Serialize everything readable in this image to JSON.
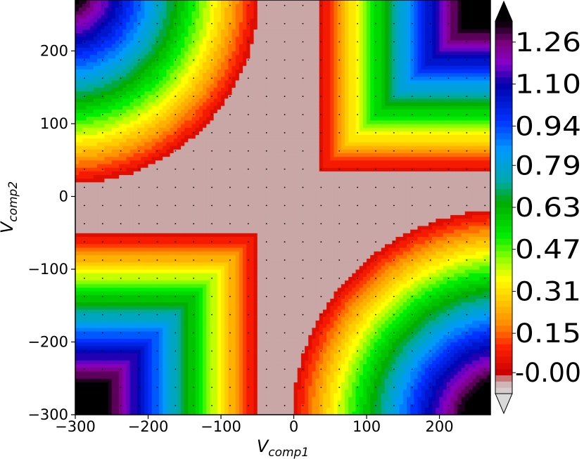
{
  "chart_data": {
    "type": "heatmap",
    "title": "",
    "xlabel": {
      "main": "V",
      "sub": "comp1"
    },
    "ylabel": {
      "main": "V",
      "sub": "comp2"
    },
    "xlim": [
      -300,
      270
    ],
    "ylim": [
      -300,
      270
    ],
    "x_ticks": [
      {
        "value": -300,
        "label": "−300"
      },
      {
        "value": -200,
        "label": "−200"
      },
      {
        "value": -100,
        "label": "−100"
      },
      {
        "value": 0,
        "label": "0"
      },
      {
        "value": 100,
        "label": "100"
      },
      {
        "value": 200,
        "label": "200"
      }
    ],
    "y_ticks": [
      {
        "value": -300,
        "label": "−300"
      },
      {
        "value": -200,
        "label": "−200"
      },
      {
        "value": -100,
        "label": "−100"
      },
      {
        "value": 0,
        "label": "0"
      },
      {
        "value": 100,
        "label": "100"
      },
      {
        "value": 200,
        "label": "200"
      }
    ],
    "colorbar": {
      "range": [
        -0.08,
        1.34
      ],
      "ticks": [
        {
          "value": 1.26,
          "label": "1.26"
        },
        {
          "value": 1.1,
          "label": "1.10"
        },
        {
          "value": 0.94,
          "label": "0.94"
        },
        {
          "value": 0.79,
          "label": "0.79"
        },
        {
          "value": 0.63,
          "label": "0.63"
        },
        {
          "value": 0.47,
          "label": "0.47"
        },
        {
          "value": 0.31,
          "label": "0.31"
        },
        {
          "value": 0.15,
          "label": "0.15"
        },
        {
          "value": 0.0,
          "label": "-0.00"
        }
      ],
      "extend": "both",
      "colormap_stops": [
        {
          "value": -0.08,
          "color": "#d9d9d9"
        },
        {
          "value": -0.03,
          "color": "#c9a7a7"
        },
        {
          "value": 0.0,
          "color": "#cc0000"
        },
        {
          "value": 0.1,
          "color": "#ff2200"
        },
        {
          "value": 0.18,
          "color": "#ff8800"
        },
        {
          "value": 0.28,
          "color": "#ffcc00"
        },
        {
          "value": 0.36,
          "color": "#ffff00"
        },
        {
          "value": 0.44,
          "color": "#88ff00"
        },
        {
          "value": 0.52,
          "color": "#00ee00"
        },
        {
          "value": 0.65,
          "color": "#00aa00"
        },
        {
          "value": 0.73,
          "color": "#00aaaa"
        },
        {
          "value": 0.85,
          "color": "#0099ff"
        },
        {
          "value": 0.96,
          "color": "#0033ff"
        },
        {
          "value": 1.1,
          "color": "#0000aa"
        },
        {
          "value": 1.18,
          "color": "#8800cc"
        },
        {
          "value": 1.26,
          "color": "#7a007a"
        },
        {
          "value": 1.34,
          "color": "#000000"
        }
      ],
      "over_color": "#000000",
      "under_color": "#d9d9d9"
    },
    "sample_grid_step": 25,
    "grid": false,
    "description_of_field": "Four-fold pattern: zero plateau along axes cross; L-shaped contours in quadrants I and III, circular contours in quadrants II and IV; max ~1.3 in corners"
  }
}
